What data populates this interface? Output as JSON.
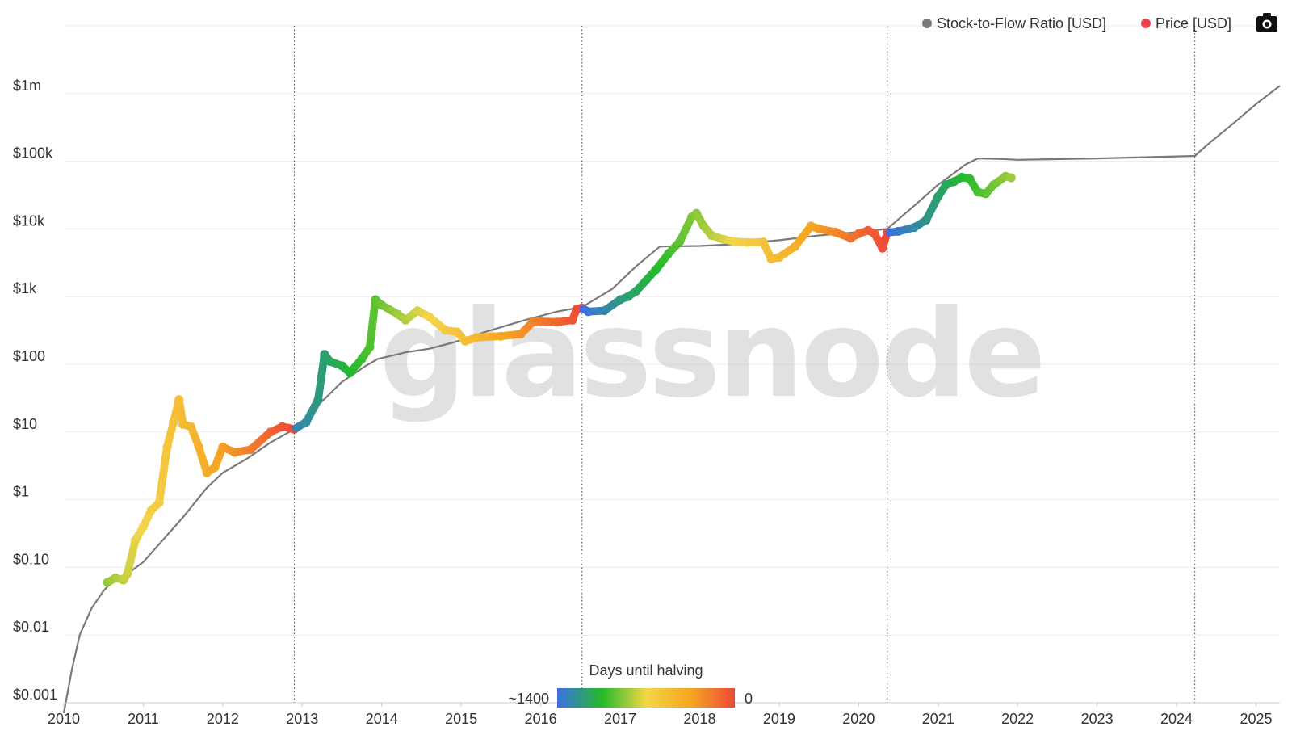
{
  "chart_data": {
    "type": "line",
    "watermark": "glassnode",
    "y_scale": "log",
    "ylim": [
      0.001,
      10000000
    ],
    "xlim": [
      2010,
      2025.3
    ],
    "y_ticks": [
      {
        "value": 0.001,
        "label": "$0.001"
      },
      {
        "value": 0.01,
        "label": "$0.01"
      },
      {
        "value": 0.1,
        "label": "$0.10"
      },
      {
        "value": 1,
        "label": "$1"
      },
      {
        "value": 10,
        "label": "$10"
      },
      {
        "value": 100,
        "label": "$100"
      },
      {
        "value": 1000,
        "label": "$1k"
      },
      {
        "value": 10000,
        "label": "$10k"
      },
      {
        "value": 100000,
        "label": "$100k"
      },
      {
        "value": 1000000,
        "label": "$1m"
      }
    ],
    "x_ticks": [
      {
        "value": 2010,
        "label": "2010"
      },
      {
        "value": 2011,
        "label": "2011"
      },
      {
        "value": 2012,
        "label": "2012"
      },
      {
        "value": 2013,
        "label": "2013"
      },
      {
        "value": 2014,
        "label": "2014"
      },
      {
        "value": 2015,
        "label": "2015"
      },
      {
        "value": 2016,
        "label": "2016"
      },
      {
        "value": 2017,
        "label": "2017"
      },
      {
        "value": 2018,
        "label": "2018"
      },
      {
        "value": 2019,
        "label": "2019"
      },
      {
        "value": 2020,
        "label": "2020"
      },
      {
        "value": 2021,
        "label": "2021"
      },
      {
        "value": 2022,
        "label": "2022"
      },
      {
        "value": 2023,
        "label": "2023"
      },
      {
        "value": 2024,
        "label": "2024"
      },
      {
        "value": 2025,
        "label": "2025"
      }
    ],
    "halvings": [
      2012.9,
      2016.52,
      2020.36,
      2024.23
    ],
    "legend": [
      {
        "name": "Stock-to-Flow Ratio [USD]",
        "color": "#7a7a7a"
      },
      {
        "name": "Price [USD]",
        "color": "#e8434b"
      }
    ],
    "colorbar": {
      "title": "Days until halving",
      "min_label": "~1400",
      "max_label": "0",
      "colors": [
        "#3d6fe6",
        "#22bb2a",
        "#f4d54a",
        "#f5a623",
        "#ee4a36"
      ]
    },
    "series": [
      {
        "name": "Stock-to-Flow Ratio [USD]",
        "color": "#7a7a7a",
        "x": [
          2010.0,
          2010.1,
          2010.2,
          2010.35,
          2010.5,
          2010.6,
          2010.8,
          2011.0,
          2011.2,
          2011.5,
          2011.8,
          2012.0,
          2012.3,
          2012.6,
          2012.9,
          2013.2,
          2013.5,
          2013.8,
          2013.95,
          2014.3,
          2014.6,
          2014.9,
          2015.3,
          2015.8,
          2016.2,
          2016.52,
          2016.9,
          2017.2,
          2017.5,
          2018.0,
          2018.5,
          2019.0,
          2019.5,
          2020.0,
          2020.36,
          2020.7,
          2021.0,
          2021.35,
          2021.5,
          2021.8,
          2022.0,
          2023.0,
          2024.0,
          2024.23,
          2024.4,
          2024.7,
          2025.0,
          2025.3
        ],
        "values": [
          0.0007,
          0.003,
          0.01,
          0.025,
          0.045,
          0.06,
          0.08,
          0.12,
          0.22,
          0.55,
          1.5,
          2.5,
          4.0,
          7.0,
          11.0,
          25.0,
          55.0,
          95.0,
          120.0,
          150.0,
          170.0,
          210.0,
          300.0,
          450.0,
          600.0,
          700.0,
          1300.0,
          2800.0,
          5500.0,
          5600.0,
          6000.0,
          6800.0,
          8000.0,
          9000.0,
          10000.0,
          22000.0,
          45000.0,
          90000.0,
          110000.0,
          108000.0,
          105000.0,
          110000.0,
          118000.0,
          120000.0,
          180000.0,
          350000.0,
          700000.0,
          1300000.0
        ]
      },
      {
        "name": "Price [USD]",
        "color": "#e8434b",
        "x": [
          2010.55,
          2010.65,
          2010.75,
          2010.8,
          2010.9,
          2011.0,
          2011.1,
          2011.2,
          2011.3,
          2011.38,
          2011.45,
          2011.5,
          2011.6,
          2011.7,
          2011.8,
          2011.9,
          2012.0,
          2012.15,
          2012.35,
          2012.6,
          2012.75,
          2012.9,
          2013.05,
          2013.2,
          2013.28,
          2013.35,
          2013.5,
          2013.6,
          2013.75,
          2013.85,
          2013.92,
          2014.0,
          2014.2,
          2014.3,
          2014.45,
          2014.6,
          2014.8,
          2014.95,
          2015.05,
          2015.2,
          2015.5,
          2015.75,
          2015.9,
          2016.0,
          2016.2,
          2016.4,
          2016.45,
          2016.52,
          2016.6,
          2016.8,
          2017.0,
          2017.1,
          2017.2,
          2017.45,
          2017.6,
          2017.75,
          2017.9,
          2017.96,
          2018.05,
          2018.15,
          2018.3,
          2018.45,
          2018.6,
          2018.8,
          2018.9,
          2019.0,
          2019.2,
          2019.4,
          2019.5,
          2019.7,
          2019.9,
          2020.0,
          2020.12,
          2020.2,
          2020.3,
          2020.36,
          2020.5,
          2020.7,
          2020.85,
          2021.0,
          2021.1,
          2021.2,
          2021.3,
          2021.4,
          2021.5,
          2021.6,
          2021.7,
          2021.85,
          2021.92
        ],
        "values": [
          0.06,
          0.07,
          0.065,
          0.08,
          0.25,
          0.4,
          0.7,
          0.9,
          6.0,
          14.0,
          30.0,
          13.0,
          12.0,
          6.0,
          2.5,
          3.0,
          6.0,
          5.0,
          5.5,
          10.0,
          12.0,
          11.0,
          14.0,
          30.0,
          140.0,
          110.0,
          95.0,
          75.0,
          120.0,
          180.0,
          900.0,
          750.0,
          550.0,
          450.0,
          620.0,
          500.0,
          320.0,
          300.0,
          220.0,
          250.0,
          260.0,
          280.0,
          420.0,
          430.0,
          420.0,
          450.0,
          650.0,
          680.0,
          600.0,
          620.0,
          900.0,
          1000.0,
          1200.0,
          2500.0,
          4200.0,
          6500.0,
          15000.0,
          17000.0,
          11000.0,
          8000.0,
          7000.0,
          6500.0,
          6300.0,
          6400.0,
          3600.0,
          3800.0,
          5500.0,
          11000.0,
          10000.0,
          9000.0,
          7300.0,
          8500.0,
          9500.0,
          8500.0,
          5200.0,
          8800.0,
          9200.0,
          10500.0,
          13500.0,
          30000.0,
          45000.0,
          50000.0,
          58000.0,
          55000.0,
          35000.0,
          33000.0,
          45000.0,
          60000.0,
          57000.0
        ]
      }
    ]
  }
}
